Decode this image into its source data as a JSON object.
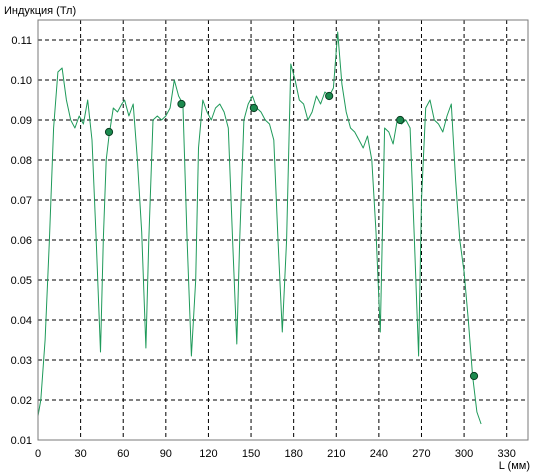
{
  "chart_data": {
    "type": "line",
    "ylabel": "Индукция (Тл)",
    "xlabel": "L (мм)",
    "xlim": [
      0,
      345
    ],
    "ylim": [
      0.01,
      0.115
    ],
    "x_ticks": [
      "0",
      "30",
      "60",
      "90",
      "120",
      "150",
      "180",
      "210",
      "240",
      "270",
      "300",
      "330"
    ],
    "y_ticks": [
      "0.11",
      "0.10",
      "0.09",
      "0.08",
      "0.07",
      "0.06",
      "0.05",
      "0.04",
      "0.03",
      "0.02",
      "0.01"
    ],
    "grid": true,
    "colors": {
      "line": "#1f9a5a",
      "marker": "#1b8a4e",
      "marker_stroke": "#0a3d22",
      "grid": "#000000"
    },
    "series": [
      {
        "x": [
          0,
          2,
          5,
          8,
          11,
          14,
          17,
          20,
          23,
          26,
          29,
          32,
          35,
          38,
          41,
          44,
          46,
          48,
          50,
          53,
          56,
          59,
          61,
          64,
          67,
          70,
          73,
          76,
          78,
          81,
          84,
          87,
          90,
          93,
          96,
          99,
          102,
          105,
          108,
          111,
          113,
          116,
          119,
          122,
          125,
          128,
          131,
          134,
          137,
          140,
          142,
          145,
          148,
          151,
          154,
          157,
          160,
          163,
          166,
          169,
          172,
          175,
          178,
          181,
          184,
          187,
          190,
          193,
          196,
          199,
          202,
          205,
          208,
          211,
          214,
          217,
          220,
          223,
          226,
          229,
          232,
          235,
          238,
          241,
          244,
          247,
          250,
          253,
          256,
          259,
          262,
          265,
          268,
          270,
          273,
          276,
          279,
          282,
          285,
          288,
          291,
          294,
          297,
          300,
          303,
          306,
          309,
          312
        ],
        "y": [
          0.016,
          0.02,
          0.035,
          0.06,
          0.088,
          0.102,
          0.103,
          0.095,
          0.09,
          0.088,
          0.091,
          0.089,
          0.095,
          0.085,
          0.06,
          0.032,
          0.06,
          0.08,
          0.086,
          0.093,
          0.092,
          0.094,
          0.095,
          0.091,
          0.094,
          0.08,
          0.062,
          0.033,
          0.06,
          0.09,
          0.091,
          0.09,
          0.091,
          0.093,
          0.1,
          0.096,
          0.094,
          0.06,
          0.031,
          0.05,
          0.083,
          0.095,
          0.092,
          0.09,
          0.093,
          0.094,
          0.092,
          0.088,
          0.06,
          0.034,
          0.06,
          0.09,
          0.094,
          0.096,
          0.093,
          0.092,
          0.09,
          0.089,
          0.085,
          0.06,
          0.037,
          0.06,
          0.104,
          0.1,
          0.095,
          0.094,
          0.09,
          0.092,
          0.096,
          0.094,
          0.097,
          0.096,
          0.098,
          0.112,
          0.099,
          0.092,
          0.088,
          0.087,
          0.085,
          0.083,
          0.086,
          0.08,
          0.062,
          0.037,
          0.088,
          0.087,
          0.084,
          0.09,
          0.089,
          0.09,
          0.088,
          0.06,
          0.031,
          0.07,
          0.093,
          0.095,
          0.09,
          0.089,
          0.087,
          0.091,
          0.094,
          0.075,
          0.06,
          0.052,
          0.04,
          0.026,
          0.017,
          0.014
        ]
      }
    ],
    "markers": [
      {
        "x": 50,
        "y": 0.087
      },
      {
        "x": 101,
        "y": 0.094
      },
      {
        "x": 152,
        "y": 0.093
      },
      {
        "x": 205,
        "y": 0.096
      },
      {
        "x": 255,
        "y": 0.09
      },
      {
        "x": 307,
        "y": 0.026
      }
    ]
  }
}
